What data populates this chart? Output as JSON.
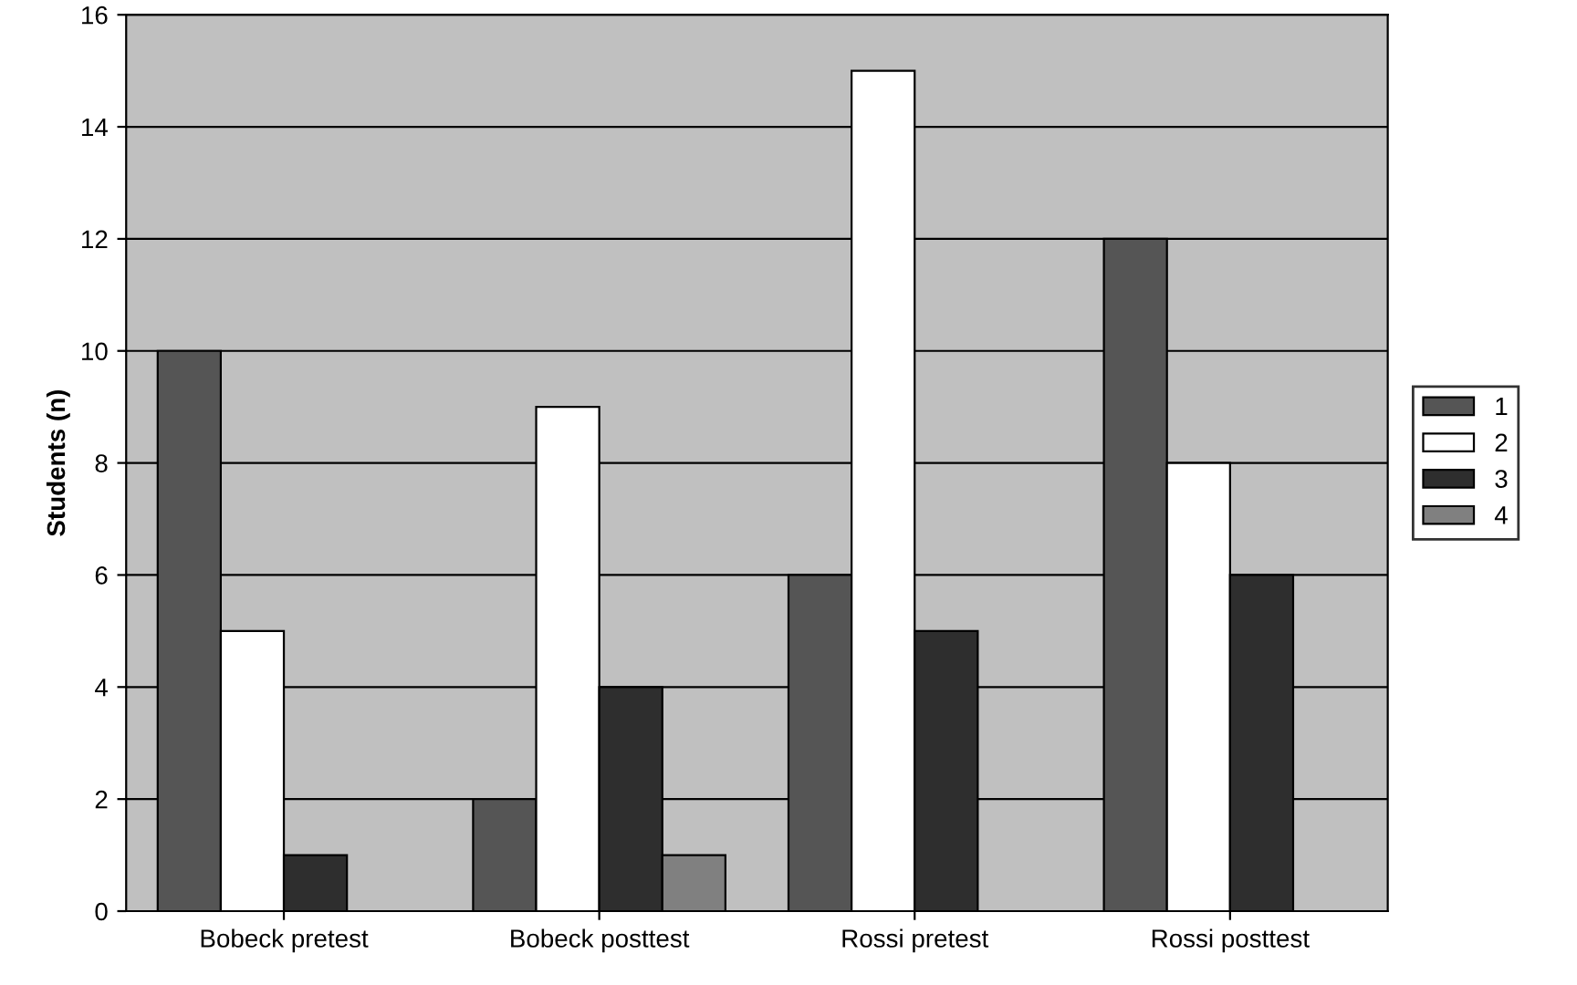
{
  "chart_data": {
    "type": "bar",
    "ylabel": "Students (n)",
    "categories": [
      "Bobeck pretest",
      "Bobeck posttest",
      "Rossi pretest",
      "Rossi posttest"
    ],
    "series": [
      {
        "name": "1",
        "color": "#555555",
        "values": [
          10,
          2,
          6,
          12
        ]
      },
      {
        "name": "2",
        "color": "#ffffff",
        "values": [
          5,
          9,
          15,
          8
        ]
      },
      {
        "name": "3",
        "color": "#2e2e2e",
        "values": [
          1,
          4,
          5,
          6
        ]
      },
      {
        "name": "4",
        "color": "#808080",
        "values": [
          null,
          1,
          null,
          null
        ]
      }
    ],
    "ylim": [
      0,
      16
    ],
    "yticks": [
      0,
      2,
      4,
      6,
      8,
      10,
      12,
      14,
      16
    ],
    "grid": "y",
    "legend": "right"
  }
}
